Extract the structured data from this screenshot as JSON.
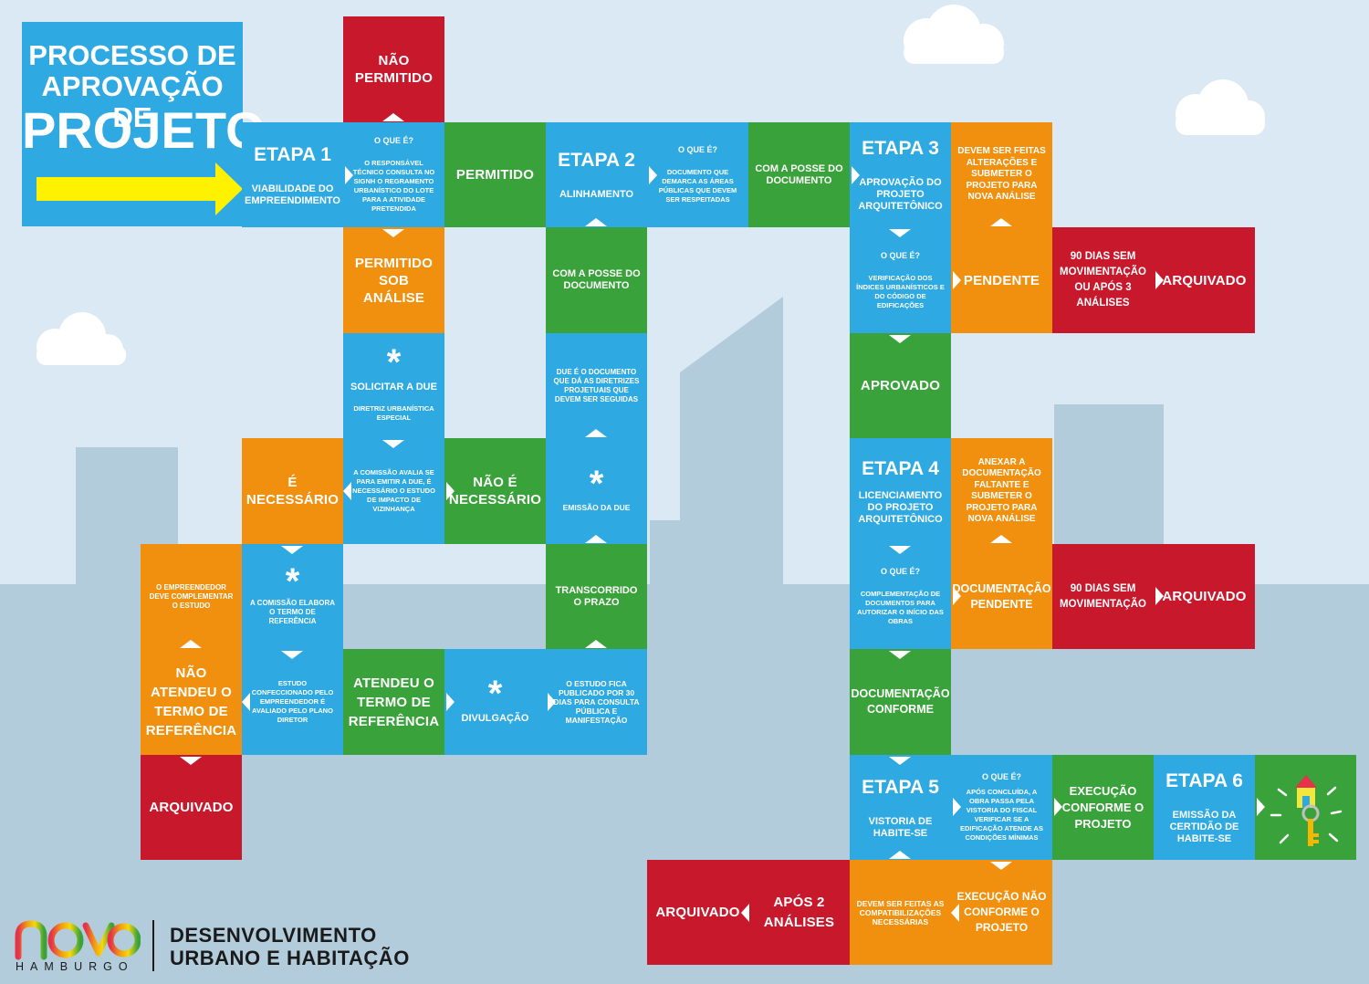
{
  "title": {
    "line1": "PROCESSO DE",
    "line2": "APROVAÇÃO DE",
    "line3": "PROJETO"
  },
  "colors": {
    "blue": "#2ea9e1",
    "green": "#3aa23a",
    "orange": "#f0900e",
    "red": "#c8182c",
    "yellow": "#fff200"
  },
  "tiles": {
    "nao_permitido": "NÃO PERMITIDO",
    "etapa1": {
      "title": "ETAPA 1",
      "text": "VIABILIDADE DO EMPREENDIMENTO"
    },
    "q1": {
      "q": "O QUE É?",
      "text": "O RESPONSÁVEL TÉCNICO CONSULTA NO SIGNH O REGRAMENTO URBANÍSTICO DO LOTE PARA A ATIVIDADE PRETENDIDA"
    },
    "permitido": "PERMITIDO",
    "etapa2": {
      "title": "ETAPA 2",
      "text": "ALINHAMENTO"
    },
    "q2": {
      "q": "O QUE É?",
      "text": "DOCUMENTO QUE DEMARCA AS ÁREAS PÚBLICAS QUE DEVEM SER RESPEITADAS"
    },
    "posse1": "COM A POSSE DO DOCUMENTO",
    "etapa3": {
      "title": "ETAPA 3",
      "text": "APROVAÇÃO DO PROJETO ARQUITETÔNICO"
    },
    "alteracoes": "DEVEM SER FEITAS ALTERAÇÕES E SUBMETER O PROJETO PARA NOVA ANÁLISE",
    "permitido_sob": "PERMITIDO SOB ANÁLISE",
    "posse2": "COM A POSSE DO DOCUMENTO",
    "q3": {
      "q": "O QUE É?",
      "text": "VERIFICAÇÃO DOS ÍNDICES URBANÍSTICOS E DO CÓDIGO DE EDIFICAÇÕES"
    },
    "pendente": "PENDENTE",
    "noventa1": "90 DIAS SEM MOVIMENTAÇÃO OU APÓS 3 ANÁLISES",
    "arquivado1": "ARQUIVADO",
    "solicitar": {
      "star": "*",
      "title": "SOLICITAR A DUE",
      "text": "DIRETRIZ URBANÍSTICA ESPECIAL"
    },
    "due_def": "DUE É O DOCUMENTO QUE DÁ AS DIRETRIZES PROJETUAIS QUE DEVEM SER SEGUIDAS",
    "aprovado": "APROVADO",
    "e_necessario": "É NECESSÁRIO",
    "comissao_avalia": "A COMISSÃO AVALIA SE PARA EMITIR A DUE, É NECESSÁRIO O ESTUDO DE IMPACTO DE VIZINHANÇA",
    "nao_necessario": "NÃO É NECESSÁRIO",
    "emissao_due": {
      "star": "*",
      "text": "EMISSÃO DA DUE"
    },
    "etapa4": {
      "title": "ETAPA 4",
      "text": "LICENCIAMENTO DO PROJETO ARQUITETÔNICO"
    },
    "anexar": "ANEXAR A DOCUMENTAÇÃO FALTANTE E SUBMETER O PROJETO PARA NOVA ANÁLISE",
    "complementar": "O EMPREENDEDOR DEVE COMPLEMENTAR O ESTUDO",
    "comissao_elabora": {
      "star": "*",
      "text": "A COMISSÃO ELABORA O TERMO DE REFERÊNCIA"
    },
    "transcorrido": "TRANSCORRIDO O PRAZO",
    "q4": {
      "q": "O QUE É?",
      "text": "COMPLEMENTAÇÃO DE DOCUMENTOS PARA AUTORIZAR O INÍCIO DAS OBRAS"
    },
    "doc_pendente": "DOCUMENTAÇÃO PENDENTE",
    "noventa2": "90 DIAS SEM MOVIMENTAÇÃO",
    "arquivado2": "ARQUIVADO",
    "nao_atendeu": "NÃO ATENDEU O TERMO DE REFERÊNCIA",
    "estudo_conf": "ESTUDO CONFECCIONADO PELO EMPREENDEDOR É AVALIADO PELO PLANO DIRETOR",
    "atendeu": "ATENDEU O TERMO DE REFERÊNCIA",
    "divulgacao": {
      "star": "*",
      "text": "DIVULGAÇÃO"
    },
    "estudo_fica": "O ESTUDO FICA PUBLICADO POR 30 DIAS PARA CONSULTA PÚBLICA E MANIFESTAÇÃO",
    "doc_conforme": "DOCUMENTAÇÃO CONFORME",
    "arquivado3": "ARQUIVADO",
    "etapa5": {
      "title": "ETAPA 5",
      "text": "VISTORIA DE HABITE-SE"
    },
    "q5": {
      "q": "O QUE É?",
      "text": "APÓS CONCLUÍDA, A OBRA PASSA PELA VISTORIA DO FISCAL VERIFICAR SE A EDIFICAÇÃO ATENDE AS CONDIÇÕES MÍNIMAS"
    },
    "execucao_conf": "EXECUÇÃO CONFORME O PROJETO",
    "etapa6": {
      "title": "ETAPA 6",
      "text": "EMISSÃO DA CERTIDÃO DE HABITE-SE"
    },
    "arquivado4": "ARQUIVADO",
    "apos2": "APÓS 2 ANÁLISES",
    "compatib": "DEVEM SER FEITAS AS COMPATIBILIZAÇÕES NECESSÁRIAS",
    "execucao_nao": "EXECUÇÃO NÃO CONFORME O PROJETO"
  },
  "footer": {
    "brand": "HAMBURGO",
    "logo_text": "novo",
    "dept_line1": "DESENVOLVIMENTO",
    "dept_line2": "URBANO E HABITAÇÃO"
  },
  "icons": [
    "arrow-right-icon",
    "triangle-icon",
    "house-key-icon",
    "cloud-icon",
    "novo-hamburgo-logo"
  ]
}
